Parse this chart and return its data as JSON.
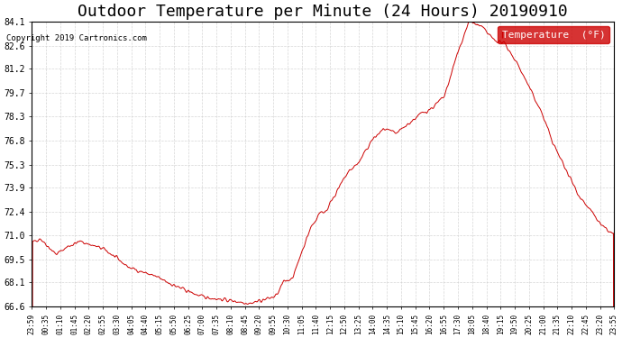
{
  "title": "Outdoor Temperature per Minute (24 Hours) 20190910",
  "copyright": "Copyright 2019 Cartronics.com",
  "legend_label": "Temperature  (°F)",
  "yticks": [
    84.1,
    82.6,
    81.2,
    79.7,
    78.3,
    76.8,
    75.3,
    73.9,
    72.4,
    71.0,
    69.5,
    68.1,
    66.6
  ],
  "ymin": 66.6,
  "ymax": 84.1,
  "xtick_labels": [
    "23:59",
    "00:35",
    "01:10",
    "01:45",
    "02:20",
    "02:55",
    "03:30",
    "04:05",
    "04:40",
    "05:15",
    "05:50",
    "06:25",
    "07:00",
    "07:35",
    "08:10",
    "08:45",
    "09:20",
    "09:55",
    "10:30",
    "11:05",
    "11:40",
    "12:15",
    "12:50",
    "13:25",
    "14:00",
    "14:35",
    "15:10",
    "15:45",
    "16:20",
    "16:55",
    "17:30",
    "18:05",
    "18:40",
    "19:15",
    "19:50",
    "20:25",
    "21:00",
    "21:35",
    "22:10",
    "22:45",
    "23:20",
    "23:55"
  ],
  "line_color": "#cc0000",
  "background_color": "#ffffff",
  "grid_color": "#cccccc",
  "title_fontsize": 13,
  "legend_bg": "#cc0000",
  "legend_text_color": "#ffffff"
}
